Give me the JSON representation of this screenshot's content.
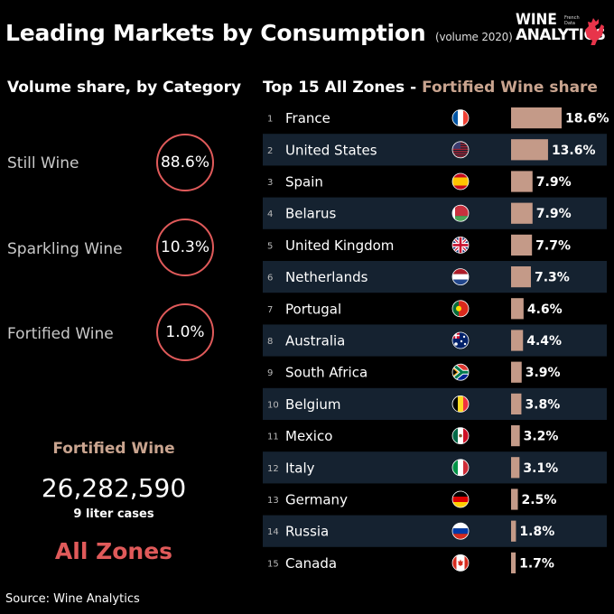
{
  "header": {
    "title": "Leading Markets by Consumption",
    "subtitle": "(volume 2020)",
    "logo_line1": "WINE",
    "logo_line2": "ANALYTICS",
    "logo_tag_line1": "French",
    "logo_tag_line2": "Data"
  },
  "left_panel": {
    "heading": "Volume share, by Category",
    "categories": [
      {
        "label": "Still Wine",
        "share": "88.6%"
      },
      {
        "label": "Sparkling Wine",
        "share": "10.3%"
      },
      {
        "label": "Fortified Wine",
        "share": "1.0%"
      }
    ],
    "summary": {
      "category": "Fortified Wine",
      "volume": "26,282,590",
      "unit": "9 liter cases",
      "zone": "All Zones"
    }
  },
  "right_panel": {
    "heading": "Top 15 All Zones - ",
    "heading_accent": "Fortified Wine share"
  },
  "source": "Source: Wine  Analytics",
  "colors": {
    "accent_red": "#e05a5a",
    "bar": "#c49a88",
    "accent_tan": "#c9a48f",
    "row_band": "#152230"
  },
  "chart_data": {
    "type": "bar",
    "orientation": "horizontal",
    "categories": [
      "France",
      "United States",
      "Spain",
      "Belarus",
      "United Kingdom",
      "Netherlands",
      "Portugal",
      "Australia",
      "South Africa",
      "Belgium",
      "Mexico",
      "Italy",
      "Germany",
      "Russia",
      "Canada"
    ],
    "ranks": [
      "1",
      "2",
      "3",
      "4",
      "5",
      "6",
      "7",
      "8",
      "9",
      "10",
      "11",
      "12",
      "13",
      "14",
      "15"
    ],
    "values": [
      18.6,
      13.6,
      7.9,
      7.9,
      7.7,
      7.3,
      4.6,
      4.4,
      3.9,
      3.8,
      3.2,
      3.1,
      2.5,
      1.8,
      1.7
    ],
    "value_labels": [
      "18.6%",
      "13.6%",
      "7.9%",
      "7.9%",
      "7.7%",
      "7.3%",
      "4.6%",
      "4.4%",
      "3.9%",
      "3.8%",
      "3.2%",
      "3.1%",
      "2.5%",
      "1.8%",
      "1.7%"
    ],
    "flags": [
      "france-flag-icon",
      "united-states-flag-icon",
      "spain-flag-icon",
      "belarus-flag-icon",
      "united-kingdom-flag-icon",
      "netherlands-flag-icon",
      "portugal-flag-icon",
      "australia-flag-icon",
      "south-africa-flag-icon",
      "belgium-flag-icon",
      "mexico-flag-icon",
      "italy-flag-icon",
      "germany-flag-icon",
      "russia-flag-icon",
      "canada-flag-icon"
    ],
    "xlim": [
      0,
      18.6
    ],
    "grid": false
  }
}
